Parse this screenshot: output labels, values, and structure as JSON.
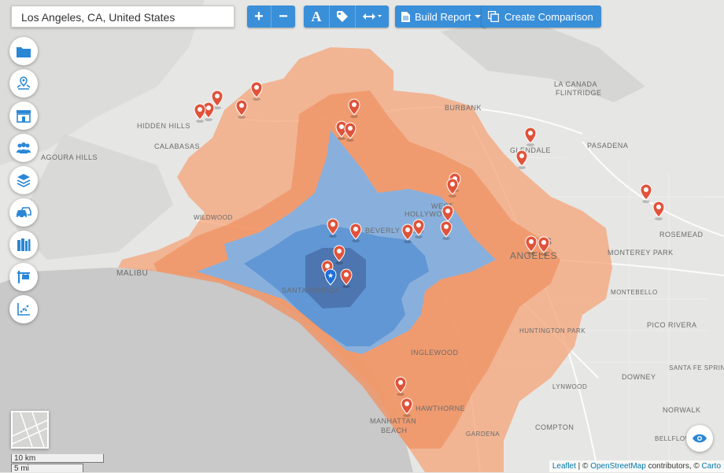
{
  "search": {
    "value": "Los Angeles, CA, United States"
  },
  "toolbar": {
    "zoom_in": "+",
    "zoom_out": "−",
    "text_tool": "A",
    "build_report": "Build Report",
    "create_comparison": "Create Comparison"
  },
  "sidebar": {
    "items": [
      {
        "name": "folder"
      },
      {
        "name": "location-pins"
      },
      {
        "name": "store"
      },
      {
        "name": "demographics"
      },
      {
        "name": "layers"
      },
      {
        "name": "traffic"
      },
      {
        "name": "books"
      },
      {
        "name": "real-estate"
      },
      {
        "name": "chart"
      }
    ]
  },
  "map": {
    "places": [
      {
        "text": "LA CANADA"
      },
      {
        "text": "FLINTRIDGE"
      },
      {
        "text": "BURBANK"
      },
      {
        "text": "HIDDEN HILLS"
      },
      {
        "text": "CALABASAS"
      },
      {
        "text": "AGOURA HILLS"
      },
      {
        "text": "GLENDALE"
      },
      {
        "text": "PASADENA"
      },
      {
        "text": "WEST"
      },
      {
        "text": "HOLLYWOOD"
      },
      {
        "text": "BEVERLY HILLS"
      },
      {
        "text": "LOS"
      },
      {
        "text": "ANGELES"
      },
      {
        "text": "MONTEREY PARK"
      },
      {
        "text": "ROSEMEAD"
      },
      {
        "text": "MALIBU"
      },
      {
        "text": "SANTA MONICA"
      },
      {
        "text": "HUNTINGTON PARK"
      },
      {
        "text": "PICO RIVERA"
      },
      {
        "text": "INGLEWOOD"
      },
      {
        "text": "SANTA FE SPRINGS"
      },
      {
        "text": "DOWNEY"
      },
      {
        "text": "HAWTHORNE"
      },
      {
        "text": "LYNWOOD"
      },
      {
        "text": "COMPTON"
      },
      {
        "text": "NORWALK"
      },
      {
        "text": "MANHATTAN"
      },
      {
        "text": "BEACH"
      },
      {
        "text": "GARDENA"
      },
      {
        "text": "BELLFLOWER"
      },
      {
        "text": "WILDWOOD"
      },
      {
        "text": "MONTEBELLO"
      }
    ],
    "center_marker": "star-pin"
  },
  "scale": {
    "km": "10 km",
    "mi": "5 mi"
  },
  "attribution": {
    "leaflet": "Leaflet",
    "sep": " | © ",
    "osm": "OpenStreetMap",
    "contrib": " contributors, © ",
    "carto": "Carto"
  },
  "colors": {
    "outer_zone": "#f4a47a",
    "middle_zone": "#f09565",
    "inner_zone": "#7db2e8",
    "core_zone": "#4a7fc4",
    "marker": "#e0533a",
    "accent": "#3a8fd9",
    "ocean": "#c9c9c9",
    "land": "#e6e6e4"
  }
}
